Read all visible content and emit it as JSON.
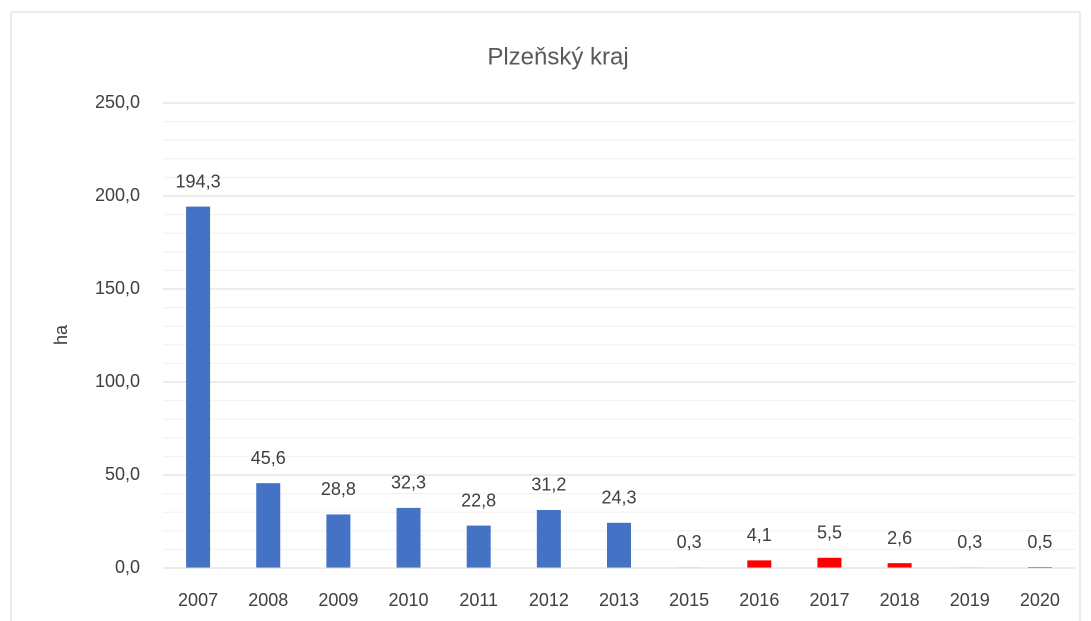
{
  "chart_data": {
    "type": "bar",
    "title": "Plzeňský kraj",
    "y_label": "ha",
    "categories": [
      "2007",
      "2008",
      "2009",
      "2010",
      "2011",
      "2012",
      "2013",
      "2015",
      "2016",
      "2017",
      "2018",
      "2019",
      "2020"
    ],
    "values": [
      194.3,
      45.6,
      28.8,
      32.3,
      22.8,
      31.2,
      24.3,
      0.3,
      4.1,
      5.5,
      2.6,
      0.3,
      0.5
    ],
    "value_labels": [
      "194,3",
      "45,6",
      "28,8",
      "32,3",
      "22,8",
      "31,2",
      "24,3",
      "0,3",
      "4,1",
      "5,5",
      "2,6",
      "0,3",
      "0,5"
    ],
    "colors": [
      "#4472c4",
      "#4472c4",
      "#4472c4",
      "#4472c4",
      "#4472c4",
      "#4472c4",
      "#4472c4",
      "#ff0000",
      "#ff0000",
      "#ff0000",
      "#ff0000",
      "#ff0000",
      "#ff0000"
    ],
    "ylim": [
      0,
      250
    ],
    "yticks": [
      {
        "value": 0,
        "label": "0,0"
      },
      {
        "value": 50,
        "label": "50,0"
      },
      {
        "value": 100,
        "label": "100,0"
      },
      {
        "value": 150,
        "label": "150,0"
      },
      {
        "value": 200,
        "label": "200,0"
      },
      {
        "value": 250,
        "label": "250,0"
      }
    ],
    "minor_yticks": [
      10,
      20,
      30,
      40,
      60,
      70,
      80,
      90,
      110,
      120,
      130,
      140,
      160,
      170,
      180,
      190,
      210,
      220,
      230,
      240
    ],
    "grid": true
  }
}
